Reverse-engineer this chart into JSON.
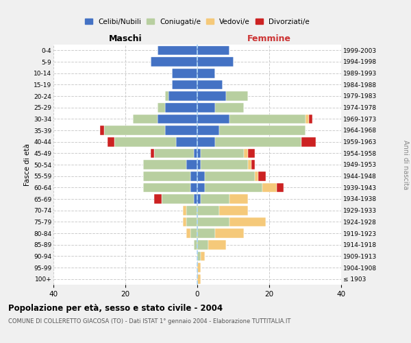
{
  "age_groups": [
    "100+",
    "95-99",
    "90-94",
    "85-89",
    "80-84",
    "75-79",
    "70-74",
    "65-69",
    "60-64",
    "55-59",
    "50-54",
    "45-49",
    "40-44",
    "35-39",
    "30-34",
    "25-29",
    "20-24",
    "15-19",
    "10-14",
    "5-9",
    "0-4"
  ],
  "birth_years": [
    "≤ 1903",
    "1904-1908",
    "1909-1913",
    "1914-1918",
    "1919-1923",
    "1924-1928",
    "1929-1933",
    "1934-1938",
    "1939-1943",
    "1944-1948",
    "1949-1953",
    "1954-1958",
    "1959-1963",
    "1964-1968",
    "1969-1973",
    "1974-1978",
    "1979-1983",
    "1984-1988",
    "1989-1993",
    "1994-1998",
    "1999-2003"
  ],
  "maschi": {
    "celibe": [
      0,
      0,
      0,
      0,
      0,
      0,
      0,
      1,
      2,
      2,
      3,
      1,
      6,
      9,
      11,
      9,
      8,
      7,
      7,
      13,
      11
    ],
    "coniugato": [
      0,
      0,
      0,
      1,
      2,
      3,
      3,
      9,
      13,
      13,
      12,
      11,
      17,
      17,
      7,
      2,
      1,
      0,
      0,
      0,
      0
    ],
    "vedovo": [
      0,
      0,
      0,
      0,
      1,
      1,
      1,
      0,
      0,
      0,
      0,
      0,
      0,
      0,
      0,
      0,
      0,
      0,
      0,
      0,
      0
    ],
    "divorziato": [
      0,
      0,
      0,
      0,
      0,
      0,
      0,
      2,
      0,
      0,
      0,
      1,
      2,
      1,
      0,
      0,
      0,
      0,
      0,
      0,
      0
    ]
  },
  "femmine": {
    "nubile": [
      0,
      0,
      0,
      0,
      0,
      0,
      0,
      1,
      2,
      2,
      1,
      1,
      5,
      6,
      9,
      5,
      8,
      7,
      5,
      10,
      9
    ],
    "coniugata": [
      0,
      0,
      1,
      3,
      5,
      9,
      6,
      8,
      16,
      14,
      13,
      12,
      24,
      24,
      21,
      8,
      6,
      0,
      0,
      0,
      0
    ],
    "vedova": [
      1,
      1,
      1,
      5,
      8,
      10,
      8,
      5,
      4,
      1,
      1,
      1,
      0,
      0,
      1,
      0,
      0,
      0,
      0,
      0,
      0
    ],
    "divorziata": [
      0,
      0,
      0,
      0,
      0,
      0,
      0,
      0,
      2,
      2,
      1,
      2,
      4,
      0,
      1,
      0,
      0,
      0,
      0,
      0,
      0
    ]
  },
  "colors": {
    "celibe": "#4472c4",
    "coniugato": "#b8cfa0",
    "vedovo": "#f5c97a",
    "divorziato": "#cc2222"
  },
  "xlim": 40,
  "title": "Popolazione per età, sesso e stato civile - 2004",
  "subtitle": "COMUNE DI COLLERETTO GIACOSA (TO) - Dati ISTAT 1° gennaio 2004 - Elaborazione TUTTITALIA.IT",
  "ylabel": "Fasce di età",
  "ylabel_right": "Anni di nascita",
  "xlabel_left": "Maschi",
  "xlabel_right": "Femmine",
  "bg_color": "#f0f0f0",
  "plot_bg": "#ffffff",
  "legend_labels": [
    "Celibi/Nubili",
    "Coniugati/e",
    "Vedovi/e",
    "Divorziati/e"
  ]
}
